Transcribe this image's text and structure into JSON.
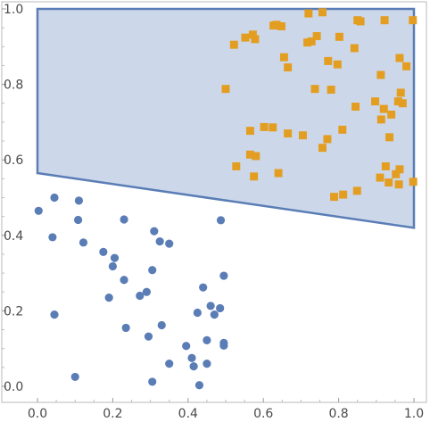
{
  "chart_data": {
    "type": "scatter",
    "title": "",
    "xlabel": "",
    "ylabel": "",
    "xlim": [
      0,
      1
    ],
    "ylim": [
      0,
      1
    ],
    "grid": false,
    "x_ticks": [
      "0.0",
      "0.2",
      "0.4",
      "0.6",
      "0.8",
      "1.0"
    ],
    "y_ticks": [
      "0.0",
      "0.2",
      "0.4",
      "0.6",
      "0.8",
      "1.0"
    ],
    "region": {
      "vertices": [
        [
          0.0,
          0.565
        ],
        [
          0.0,
          1.0
        ],
        [
          1.0,
          1.0
        ],
        [
          1.0,
          0.42
        ]
      ],
      "fill": "#ccd8ea",
      "stroke": "#5a7db6"
    },
    "series": [
      {
        "marker": "circle",
        "color": "#5a7db6",
        "points": [
          [
            0.003,
            0.465
          ],
          [
            0.045,
            0.5
          ],
          [
            0.11,
            0.492
          ],
          [
            0.108,
            0.441
          ],
          [
            0.04,
            0.395
          ],
          [
            0.122,
            0.381
          ],
          [
            0.23,
            0.442
          ],
          [
            0.31,
            0.411
          ],
          [
            0.325,
            0.384
          ],
          [
            0.35,
            0.378
          ],
          [
            0.487,
            0.44
          ],
          [
            0.175,
            0.356
          ],
          [
            0.205,
            0.34
          ],
          [
            0.2,
            0.318
          ],
          [
            0.305,
            0.308
          ],
          [
            0.23,
            0.282
          ],
          [
            0.29,
            0.25
          ],
          [
            0.272,
            0.24
          ],
          [
            0.19,
            0.235
          ],
          [
            0.44,
            0.262
          ],
          [
            0.495,
            0.293
          ],
          [
            0.045,
            0.19
          ],
          [
            0.235,
            0.155
          ],
          [
            0.46,
            0.213
          ],
          [
            0.485,
            0.207
          ],
          [
            0.425,
            0.195
          ],
          [
            0.47,
            0.19
          ],
          [
            0.33,
            0.162
          ],
          [
            0.295,
            0.132
          ],
          [
            0.395,
            0.107
          ],
          [
            0.45,
            0.122
          ],
          [
            0.495,
            0.115
          ],
          [
            0.495,
            0.108
          ],
          [
            0.41,
            0.075
          ],
          [
            0.35,
            0.06
          ],
          [
            0.45,
            0.06
          ],
          [
            0.415,
            0.053
          ],
          [
            0.1,
            0.025
          ],
          [
            0.305,
            0.012
          ],
          [
            0.43,
            0.003
          ]
        ]
      },
      {
        "marker": "square",
        "color": "#e39e22",
        "points": [
          [
            0.72,
            0.988
          ],
          [
            0.757,
            0.991
          ],
          [
            0.858,
            0.967
          ],
          [
            0.85,
            0.97
          ],
          [
            0.922,
            0.97
          ],
          [
            0.997,
            0.97
          ],
          [
            0.627,
            0.956
          ],
          [
            0.648,
            0.954
          ],
          [
            0.635,
            0.958
          ],
          [
            0.572,
            0.932
          ],
          [
            0.552,
            0.924
          ],
          [
            0.578,
            0.92
          ],
          [
            0.728,
            0.914
          ],
          [
            0.717,
            0.911
          ],
          [
            0.742,
            0.928
          ],
          [
            0.802,
            0.926
          ],
          [
            0.522,
            0.905
          ],
          [
            0.842,
            0.896
          ],
          [
            0.655,
            0.872
          ],
          [
            0.772,
            0.862
          ],
          [
            0.962,
            0.87
          ],
          [
            0.665,
            0.845
          ],
          [
            0.797,
            0.853
          ],
          [
            0.98,
            0.848
          ],
          [
            0.912,
            0.825
          ],
          [
            0.5,
            0.788
          ],
          [
            0.737,
            0.788
          ],
          [
            0.78,
            0.786
          ],
          [
            0.965,
            0.778
          ],
          [
            0.897,
            0.755
          ],
          [
            0.958,
            0.755
          ],
          [
            0.97,
            0.75
          ],
          [
            0.845,
            0.741
          ],
          [
            0.94,
            0.72
          ],
          [
            0.913,
            0.707
          ],
          [
            0.92,
            0.735
          ],
          [
            0.602,
            0.687
          ],
          [
            0.625,
            0.686
          ],
          [
            0.81,
            0.68
          ],
          [
            0.565,
            0.677
          ],
          [
            0.665,
            0.67
          ],
          [
            0.705,
            0.665
          ],
          [
            0.935,
            0.66
          ],
          [
            0.77,
            0.655
          ],
          [
            0.757,
            0.632
          ],
          [
            0.565,
            0.614
          ],
          [
            0.58,
            0.61
          ],
          [
            0.528,
            0.583
          ],
          [
            0.925,
            0.583
          ],
          [
            0.962,
            0.575
          ],
          [
            0.952,
            0.562
          ],
          [
            0.64,
            0.565
          ],
          [
            0.575,
            0.556
          ],
          [
            0.91,
            0.553
          ],
          [
            0.933,
            0.54
          ],
          [
            0.96,
            0.535
          ],
          [
            0.998,
            0.542
          ],
          [
            0.849,
            0.518
          ],
          [
            0.812,
            0.508
          ],
          [
            0.788,
            0.502
          ]
        ]
      }
    ]
  }
}
